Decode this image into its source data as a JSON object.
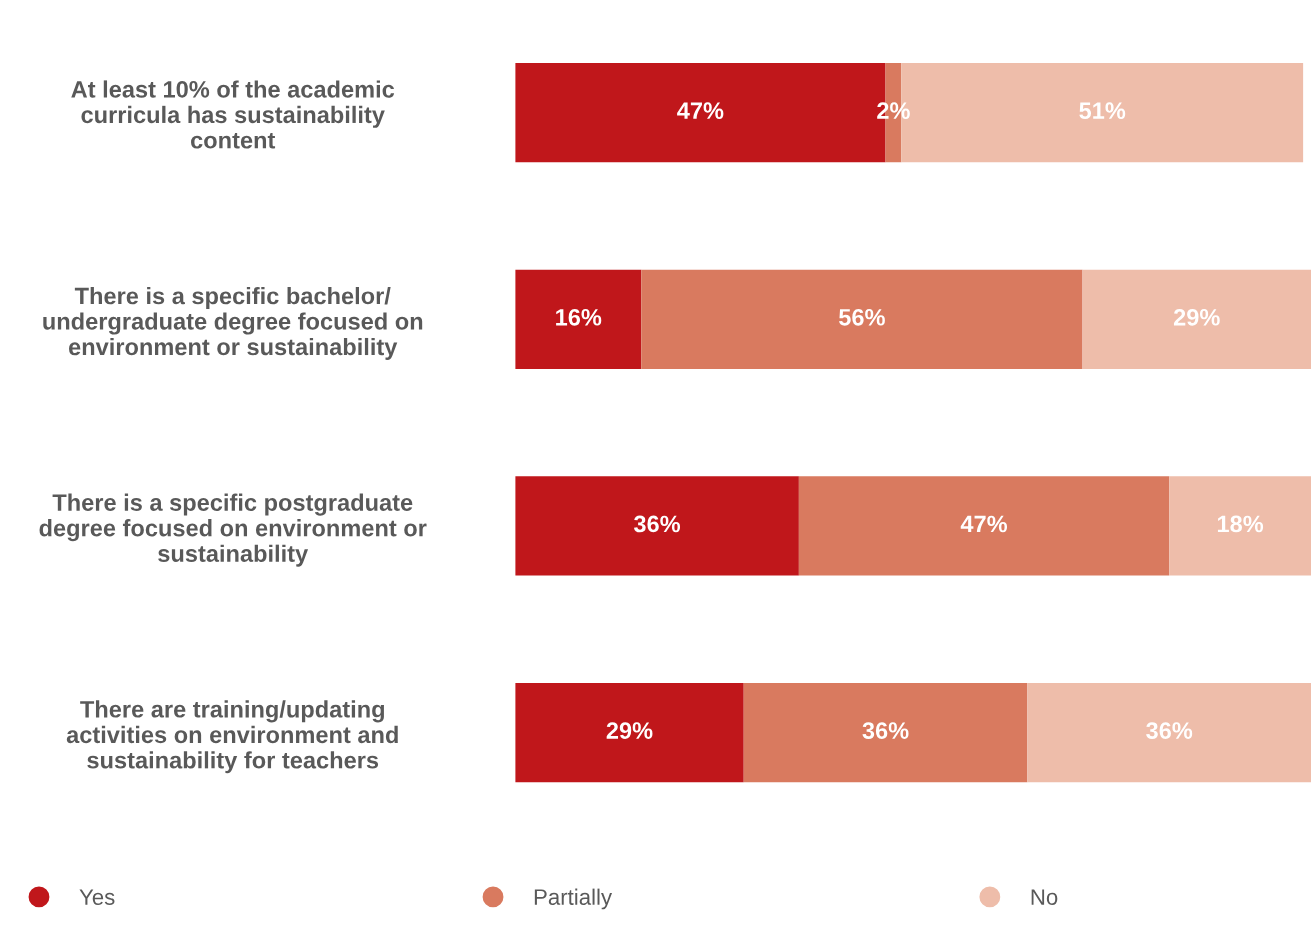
{
  "chart_data": {
    "type": "bar",
    "orientation": "horizontal",
    "stacked": true,
    "legend": "bottom",
    "grid": false,
    "categories": [
      "At least 10% of the academic curricula has sustainability content",
      "There is a specific bachelor/ undergraduate degree focused on environment or sustainability",
      "There is a specific postgraduate degree focused on environment or sustainability",
      "There are training/updating activities on environment and sustainability for teachers"
    ],
    "series": [
      {
        "name": "Yes",
        "color": "#c0171b",
        "values": [
          47,
          16,
          36,
          29
        ],
        "value_labels": [
          "47%",
          "16%",
          "36%",
          "29%"
        ]
      },
      {
        "name": "Partially",
        "color": "#d97a5f",
        "values": [
          2,
          56,
          47,
          36
        ],
        "value_labels": [
          "2%",
          "56%",
          "47%",
          "36%"
        ]
      },
      {
        "name": "No",
        "color": "#eebdaa",
        "values": [
          51,
          29,
          18,
          36
        ],
        "value_labels": [
          "51%",
          "29%",
          "18%",
          "36%"
        ]
      }
    ]
  }
}
